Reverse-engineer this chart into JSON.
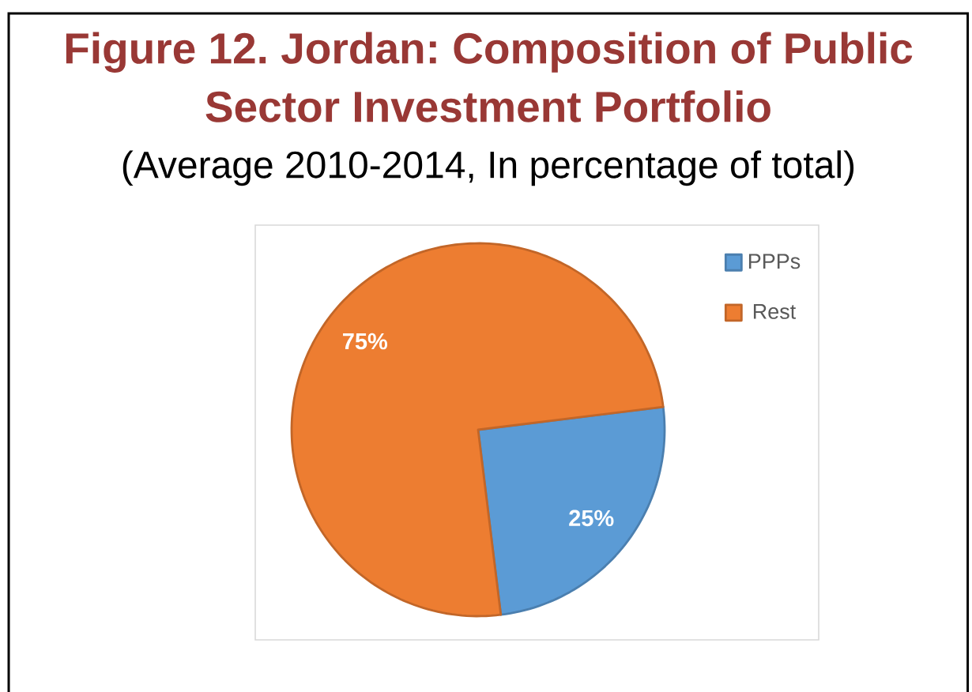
{
  "chart_data": {
    "type": "pie",
    "title": "Figure 12. Jordan: Composition of Public Sector Investment Portfolio",
    "subtitle": "(Average 2010-2014, In percentage of total)",
    "categories": [
      "PPPs",
      "Rest"
    ],
    "values": [
      25,
      75
    ],
    "colors": [
      "#5b9bd5",
      "#ed7d31"
    ],
    "value_labels": [
      "25%",
      "75%"
    ],
    "legend": "top right"
  }
}
